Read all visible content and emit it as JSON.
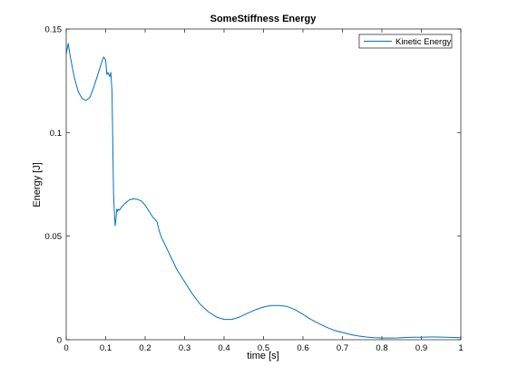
{
  "chart_data": {
    "type": "line",
    "title": "SomeStiffness Energy",
    "xlabel": "time [s]",
    "ylabel": "Energy [J]",
    "xlim": [
      0,
      1
    ],
    "ylim": [
      0,
      0.15
    ],
    "x_ticks": [
      "0",
      "0.1",
      "0.2",
      "0.3",
      "0.4",
      "0.5",
      "0.6",
      "0.7",
      "0.8",
      "0.9",
      "1"
    ],
    "y_ticks": [
      "0",
      "0.05",
      "0.1",
      "0.15"
    ],
    "grid": false,
    "legend_position": "top-right",
    "series": [
      {
        "name": "Kinetic Energy",
        "color": "#0072bd",
        "x": [
          0,
          0.005,
          0.01,
          0.02,
          0.03,
          0.04,
          0.05,
          0.06,
          0.07,
          0.08,
          0.09,
          0.095,
          0.1,
          0.103,
          0.106,
          0.11,
          0.113,
          0.116,
          0.118,
          0.12,
          0.122,
          0.124,
          0.126,
          0.128,
          0.13,
          0.132,
          0.135,
          0.14,
          0.15,
          0.16,
          0.17,
          0.18,
          0.19,
          0.2,
          0.21,
          0.22,
          0.23,
          0.235,
          0.24,
          0.25,
          0.26,
          0.27,
          0.28,
          0.29,
          0.3,
          0.32,
          0.34,
          0.36,
          0.38,
          0.4,
          0.42,
          0.44,
          0.46,
          0.48,
          0.5,
          0.52,
          0.54,
          0.56,
          0.58,
          0.6,
          0.62,
          0.64,
          0.66,
          0.68,
          0.7,
          0.72,
          0.74,
          0.76,
          0.78,
          0.8,
          0.82,
          0.84,
          0.86,
          0.88,
          0.9,
          0.92,
          0.94,
          0.96,
          0.98,
          1.0
        ],
        "values": [
          0.138,
          0.143,
          0.137,
          0.127,
          0.12,
          0.1165,
          0.1155,
          0.117,
          0.122,
          0.128,
          0.134,
          0.1365,
          0.135,
          0.128,
          0.129,
          0.127,
          0.129,
          0.12,
          0.095,
          0.07,
          0.062,
          0.055,
          0.058,
          0.063,
          0.062,
          0.063,
          0.0625,
          0.064,
          0.066,
          0.0675,
          0.068,
          0.0678,
          0.067,
          0.065,
          0.062,
          0.059,
          0.057,
          0.053,
          0.05,
          0.046,
          0.042,
          0.038,
          0.034,
          0.031,
          0.028,
          0.022,
          0.017,
          0.0135,
          0.011,
          0.0098,
          0.0098,
          0.011,
          0.0128,
          0.0145,
          0.0158,
          0.0165,
          0.0165,
          0.016,
          0.0145,
          0.0122,
          0.0098,
          0.0078,
          0.006,
          0.0045,
          0.0035,
          0.0025,
          0.0018,
          0.0013,
          0.001,
          0.0008,
          0.0008,
          0.0009,
          0.0011,
          0.0012,
          0.0012,
          0.0013,
          0.0013,
          0.0012,
          0.0011,
          0.001
        ]
      }
    ]
  }
}
